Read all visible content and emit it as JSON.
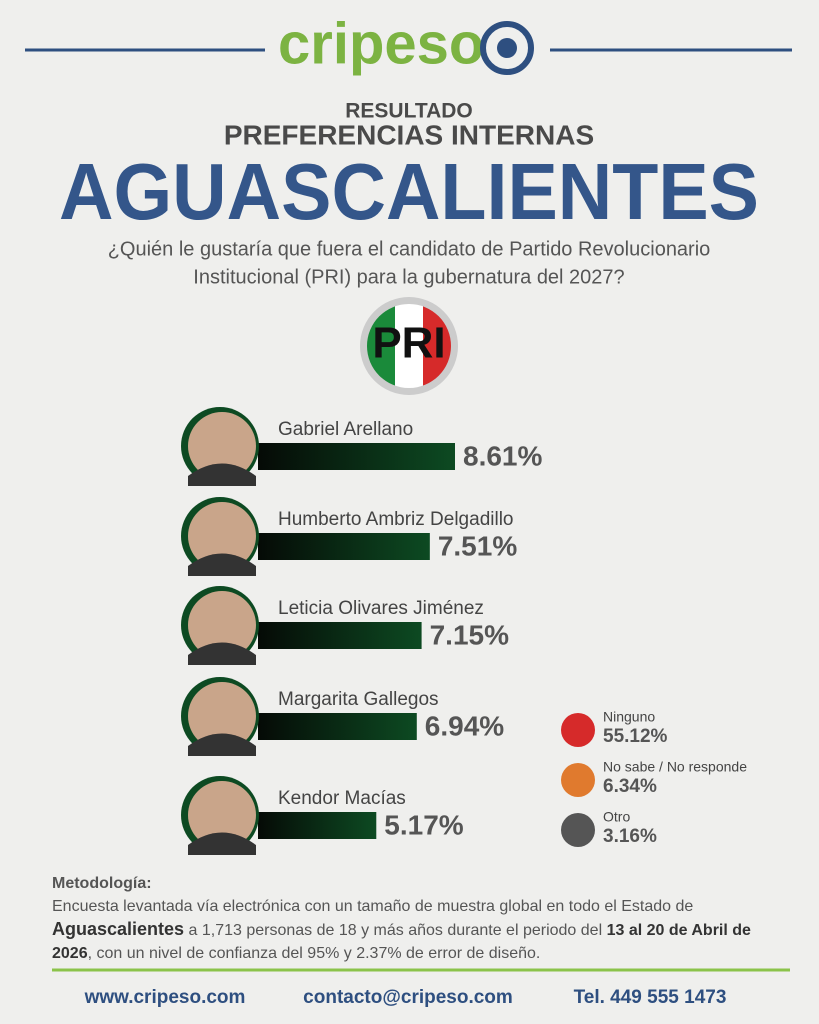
{
  "header": {
    "logo": "cripeso",
    "kicker": "RESULTADO",
    "subtitle": "PREFERENCIAS INTERNAS",
    "title": "AGUASCALIENTES",
    "question": [
      "¿Quién le gustaría que fuera el candidato de Partido Revolucionario",
      "Institucional (PRI) para la gubernatura del 2027?"
    ],
    "party": "PRI"
  },
  "chart_data": {
    "type": "bar",
    "categories": [
      "Gabriel Arellano",
      "Humberto Ambriz Delgadillo",
      "Leticia Olivares Jiménez",
      "Margarita Gallegos",
      "Kendor Macías"
    ],
    "values": [
      8.61,
      7.51,
      7.15,
      6.94,
      5.17
    ],
    "value_labels": [
      "8.61%",
      "7.51%",
      "7.15%",
      "6.94%",
      "5.17%"
    ],
    "color": "#0d4a22",
    "other": {
      "categories": [
        "Ninguno",
        "No sabe / No responde",
        "Otro"
      ],
      "values": [
        55.12,
        6.34,
        3.16
      ],
      "value_labels": [
        "55.12%",
        "6.34%",
        "3.16%"
      ],
      "colors": [
        "#d62a2a",
        "#e07a2e",
        "#555555"
      ]
    }
  },
  "methodology": {
    "heading": "Metodología:",
    "parts": [
      "Encuesta levantada vía electrónica con un tamaño de muestra global en todo el Estado de ",
      "Aguascalientes",
      " a 1,713 personas de 18 y más años durante el periodo del ",
      "13 al 20 de Abril de 2026",
      ", con un nivel de confianza del 95% y 2.37% de error de diseño."
    ]
  },
  "footer": {
    "web": "www.cripeso.com",
    "email": "contacto@cripeso.com",
    "phone": "Tel. 449 555 1473"
  }
}
